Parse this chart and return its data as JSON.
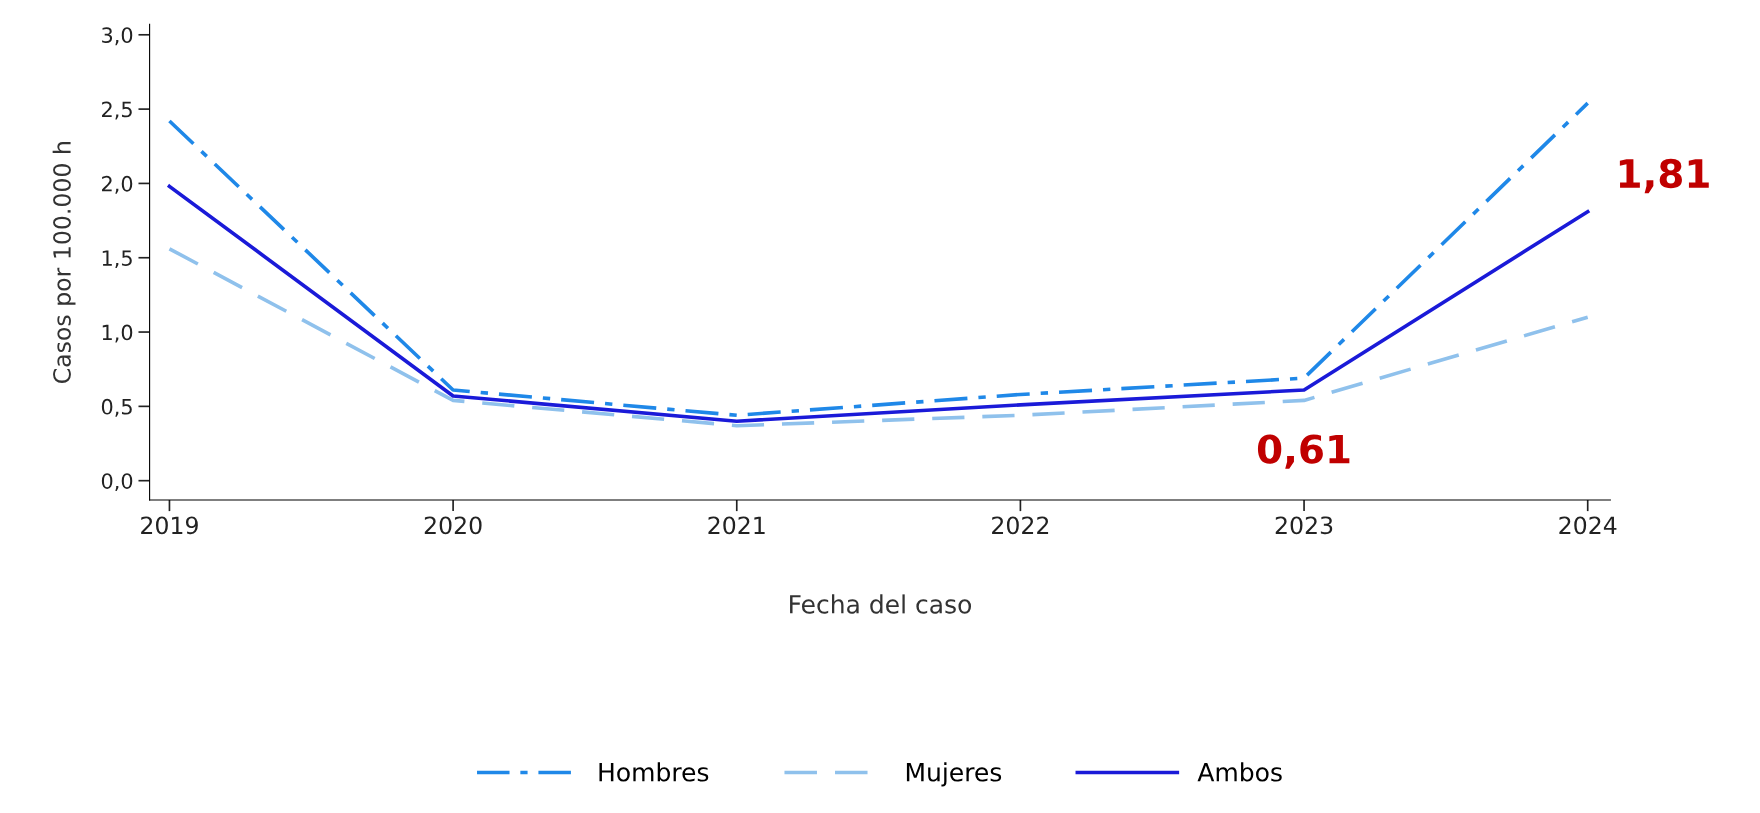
{
  "chart_data": {
    "type": "line",
    "xlabel": "Fecha del caso",
    "ylabel": "Casos por 100.000 h",
    "x": [
      2019,
      2020,
      2021,
      2022,
      2023,
      2024
    ],
    "series": [
      {
        "name": "Hombres",
        "color": "#1f88e8",
        "line_style": "dashdot",
        "values": [
          2.42,
          0.61,
          0.44,
          0.58,
          0.69,
          2.54
        ]
      },
      {
        "name": "Mujeres",
        "color": "#8fc1ec",
        "line_style": "dashed",
        "values": [
          1.56,
          0.54,
          0.37,
          0.44,
          0.54,
          1.1
        ]
      },
      {
        "name": "Ambos",
        "color": "#1a1ad8",
        "line_style": "solid",
        "values": [
          1.98,
          0.57,
          0.4,
          0.51,
          0.61,
          1.81
        ]
      }
    ],
    "xlim": [
      2018.93,
      2024.08
    ],
    "xticks": [
      2019,
      2020,
      2021,
      2022,
      2023,
      2024
    ],
    "ylim": [
      -0.13,
      3.07
    ],
    "yticks": [
      {
        "value": 0,
        "label": "0,0"
      },
      {
        "value": 0.5,
        "label": "0,5"
      },
      {
        "value": 1,
        "label": "1,0"
      },
      {
        "value": 1.5,
        "label": "1,5"
      },
      {
        "value": 2,
        "label": "2,0"
      },
      {
        "value": 2.5,
        "label": "2,5"
      },
      {
        "value": 3,
        "label": "3,0"
      }
    ],
    "annotations": [
      {
        "text": "0,61",
        "x": 2023,
        "y": 0.61
      },
      {
        "text": "1,81",
        "x": 2024,
        "y": 1.81
      }
    ],
    "legend": "bottom",
    "grid": false,
    "marker": "none"
  }
}
